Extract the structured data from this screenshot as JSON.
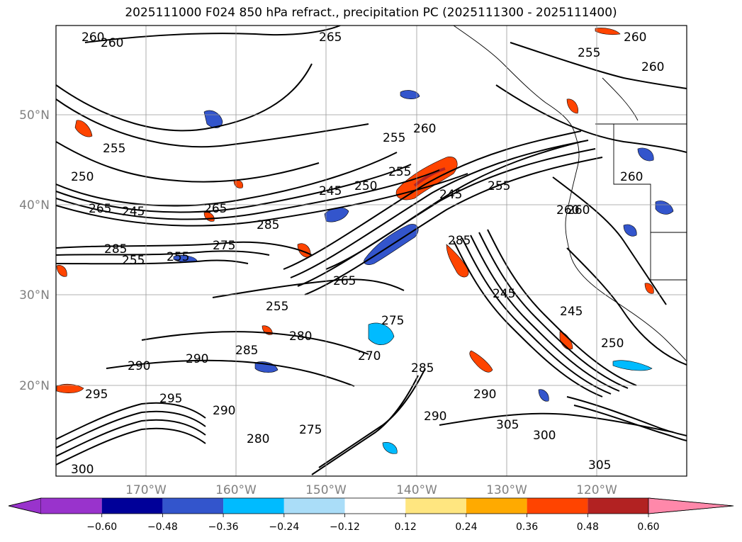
{
  "title": "2025111000 F024 850 hPa refract., precipitation PC (2025111300 - 2025111400)",
  "map": {
    "lat_labels": [
      "50°N",
      "40°N",
      "30°N",
      "20°N"
    ],
    "lon_labels": [
      "170°W",
      "160°W",
      "150°W",
      "140°W",
      "130°W",
      "120°W"
    ],
    "contour_labels": [
      "260",
      "260",
      "265",
      "255",
      "260",
      "260",
      "255",
      "250",
      "260",
      "255",
      "245",
      "265",
      "250",
      "255",
      "245",
      "255",
      "265",
      "245",
      "285",
      "275",
      "285",
      "260",
      "285",
      "255",
      "260",
      "255",
      "265",
      "275",
      "255",
      "285",
      "270",
      "280",
      "290",
      "290",
      "285",
      "295",
      "295",
      "290",
      "280",
      "275",
      "290",
      "245",
      "245",
      "250",
      "305",
      "300",
      "305",
      "290",
      "300",
      "260"
    ],
    "shaded_variable": "precipitation PC",
    "contour_variable": "850 hPa refract."
  },
  "colorbar": {
    "ticks": [
      "−0.60",
      "−0.48",
      "−0.36",
      "−0.24",
      "−0.12",
      "0.12",
      "0.24",
      "0.36",
      "0.48",
      "0.60"
    ],
    "colors": [
      "#9933cc",
      "#000099",
      "#3355cc",
      "#00bbff",
      "#aaddf8",
      "#ffffff",
      "#ffe680",
      "#ffaa00",
      "#ff4400",
      "#b22222",
      "#ff88aa"
    ],
    "extend": "both"
  }
}
